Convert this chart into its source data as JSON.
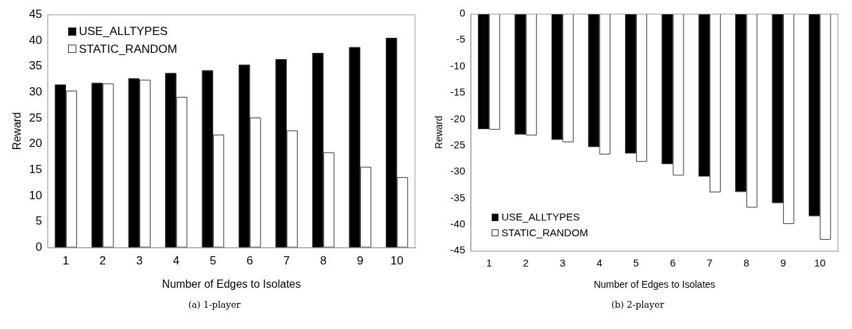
{
  "chart_data": [
    {
      "type": "bar",
      "xlabel": "Number of Edges to Isolates",
      "ylabel": "Reward",
      "categories": [
        "1",
        "2",
        "3",
        "4",
        "5",
        "6",
        "7",
        "8",
        "9",
        "10"
      ],
      "series": [
        {
          "name": "USE_ALLTYPES",
          "color": "#000000",
          "values": [
            31.5,
            31.8,
            32.7,
            33.7,
            34.2,
            35.3,
            36.4,
            37.6,
            38.7,
            40.5
          ]
        },
        {
          "name": "STATIC_RANDOM",
          "color": "#ffffff",
          "values": [
            30.3,
            31.7,
            32.4,
            29.1,
            21.8,
            25.1,
            22.6,
            18.4,
            15.6,
            13.6
          ]
        }
      ],
      "ylim": [
        0,
        45
      ],
      "yticks": [
        0,
        5,
        10,
        15,
        20,
        25,
        30,
        35,
        40,
        45
      ],
      "grid": false,
      "legend": "top left",
      "annotations": [
        "(a) 1-player"
      ]
    },
    {
      "type": "bar",
      "xlabel": "Number of Edges to Isolates",
      "ylabel": "Reward",
      "categories": [
        "1",
        "2",
        "3",
        "4",
        "5",
        "6",
        "7",
        "8",
        "9",
        "10"
      ],
      "series": [
        {
          "name": "USE_ALLTYPES",
          "color": "#000000",
          "values": [
            -21.9,
            -22.9,
            -23.9,
            -25.3,
            -26.5,
            -28.5,
            -30.9,
            -33.8,
            -35.9,
            -38.4
          ]
        },
        {
          "name": "STATIC_RANDOM",
          "color": "#ffffff",
          "values": [
            -22.0,
            -23.1,
            -24.4,
            -26.7,
            -28.1,
            -30.7,
            -33.9,
            -36.8,
            -39.9,
            -42.9
          ]
        }
      ],
      "ylim": [
        -45,
        0
      ],
      "yticks": [
        -45,
        -40,
        -35,
        -30,
        -25,
        -20,
        -15,
        -10,
        -5,
        0
      ],
      "grid": false,
      "legend": "bottom left",
      "annotations": [
        "(b) 2-player"
      ]
    }
  ]
}
